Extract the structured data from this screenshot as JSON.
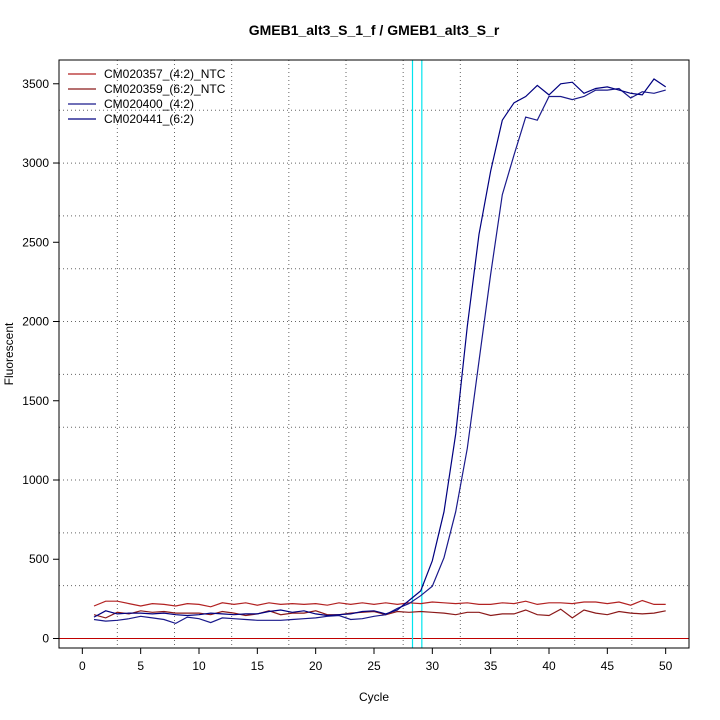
{
  "chart_data": {
    "type": "line",
    "title": "GMEB1_alt3_S_1_f / GMEB1_alt3_S_r",
    "xlabel": "Cycle",
    "ylabel": "Fluorescent",
    "xlim": [
      -2,
      52
    ],
    "ylim": [
      -60,
      3650
    ],
    "x_ticks": [
      0,
      5,
      10,
      15,
      20,
      25,
      30,
      35,
      40,
      45,
      50
    ],
    "y_ticks": [
      0,
      500,
      1000,
      1500,
      2000,
      2500,
      3000,
      3500
    ],
    "x_tick_labels": [
      "0",
      "5",
      "10",
      "15",
      "20",
      "25",
      "30",
      "35",
      "40",
      "45",
      "50"
    ],
    "y_tick_labels": [
      "0",
      "500",
      "1000",
      "1500",
      "2000",
      "2500",
      "3000",
      "3500"
    ],
    "grid": true,
    "legend_position": "top-left",
    "baseline": {
      "y": 0,
      "color": "#c00000"
    },
    "thresholds": [
      {
        "x": 28.3,
        "color": "#00e5ee"
      },
      {
        "x": 29.1,
        "color": "#00e5ee"
      }
    ],
    "x": [
      1,
      2,
      3,
      4,
      5,
      6,
      7,
      8,
      9,
      10,
      11,
      12,
      13,
      14,
      15,
      16,
      17,
      18,
      19,
      20,
      21,
      22,
      23,
      24,
      25,
      26,
      27,
      28,
      29,
      30,
      31,
      32,
      33,
      34,
      35,
      36,
      37,
      38,
      39,
      40,
      41,
      42,
      43,
      44,
      45,
      46,
      47,
      48,
      49,
      50
    ],
    "series": [
      {
        "name": "CM020357_(4:2)_NTC",
        "color": "#b22222",
        "values": [
          205,
          235,
          235,
          220,
          205,
          220,
          215,
          205,
          220,
          215,
          200,
          225,
          215,
          225,
          210,
          225,
          215,
          220,
          215,
          220,
          210,
          225,
          215,
          225,
          215,
          225,
          215,
          225,
          220,
          230,
          225,
          220,
          225,
          215,
          215,
          225,
          220,
          235,
          215,
          225,
          225,
          220,
          230,
          230,
          220,
          230,
          210,
          240,
          215,
          215
        ]
      },
      {
        "name": "CM020359_(6:2)_NTC",
        "color": "#8b1a1a",
        "values": [
          150,
          130,
          165,
          155,
          175,
          165,
          170,
          160,
          160,
          160,
          150,
          170,
          160,
          145,
          155,
          175,
          150,
          160,
          160,
          175,
          150,
          150,
          160,
          165,
          170,
          150,
          170,
          165,
          170,
          165,
          160,
          150,
          165,
          165,
          145,
          155,
          155,
          180,
          150,
          145,
          185,
          130,
          180,
          160,
          150,
          170,
          160,
          155,
          160,
          175
        ]
      },
      {
        "name": "CM020400_(4:2)",
        "color": "#1a1a8c",
        "values": [
          120,
          110,
          115,
          125,
          140,
          130,
          120,
          95,
          135,
          125,
          100,
          130,
          125,
          120,
          115,
          115,
          115,
          120,
          125,
          130,
          140,
          145,
          120,
          125,
          140,
          150,
          190,
          220,
          270,
          330,
          510,
          800,
          1200,
          1750,
          2300,
          2800,
          3050,
          3290,
          3270,
          3420,
          3420,
          3400,
          3420,
          3460,
          3460,
          3470,
          3410,
          3450,
          3440,
          3460
        ]
      },
      {
        "name": "CM020441_(6:2)",
        "color": "#000080",
        "values": [
          135,
          175,
          155,
          160,
          160,
          155,
          160,
          150,
          145,
          150,
          160,
          155,
          150,
          155,
          155,
          170,
          180,
          165,
          175,
          155,
          145,
          150,
          155,
          170,
          175,
          155,
          180,
          240,
          300,
          490,
          800,
          1290,
          1970,
          2550,
          2950,
          3270,
          3380,
          3420,
          3490,
          3430,
          3500,
          3510,
          3440,
          3470,
          3480,
          3460,
          3440,
          3430,
          3530,
          3480
        ]
      }
    ]
  }
}
